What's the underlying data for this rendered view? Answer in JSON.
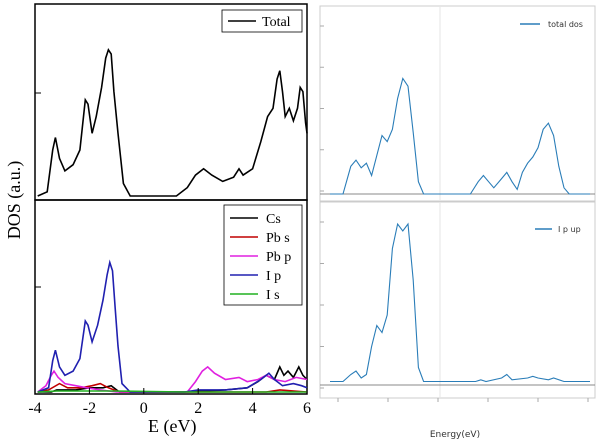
{
  "chart_data": [
    {
      "id": "left-top",
      "type": "line",
      "series": [
        {
          "name": "Total",
          "color": "#000000",
          "points": [
            [
              -3.9,
              0
            ],
            [
              -3.55,
              0.02
            ],
            [
              -3.35,
              0.22
            ],
            [
              -3.25,
              0.28
            ],
            [
              -3.1,
              0.18
            ],
            [
              -2.9,
              0.12
            ],
            [
              -2.6,
              0.15
            ],
            [
              -2.35,
              0.22
            ],
            [
              -2.15,
              0.46
            ],
            [
              -2.05,
              0.44
            ],
            [
              -1.9,
              0.3
            ],
            [
              -1.75,
              0.38
            ],
            [
              -1.55,
              0.52
            ],
            [
              -1.4,
              0.66
            ],
            [
              -1.3,
              0.7
            ],
            [
              -1.2,
              0.68
            ],
            [
              -1.1,
              0.5
            ],
            [
              -0.95,
              0.3
            ],
            [
              -0.75,
              0.06
            ],
            [
              -0.5,
              0
            ],
            [
              1.2,
              0
            ],
            [
              1.6,
              0.04
            ],
            [
              1.9,
              0.1
            ],
            [
              2.2,
              0.13
            ],
            [
              2.5,
              0.1
            ],
            [
              2.9,
              0.07
            ],
            [
              3.3,
              0.09
            ],
            [
              3.5,
              0.13
            ],
            [
              3.65,
              0.1
            ],
            [
              4.0,
              0.13
            ],
            [
              4.3,
              0.26
            ],
            [
              4.55,
              0.38
            ],
            [
              4.75,
              0.42
            ],
            [
              4.9,
              0.56
            ],
            [
              5.0,
              0.6
            ],
            [
              5.1,
              0.5
            ],
            [
              5.2,
              0.38
            ],
            [
              5.35,
              0.42
            ],
            [
              5.5,
              0.36
            ],
            [
              5.65,
              0.42
            ],
            [
              5.75,
              0.52
            ],
            [
              5.85,
              0.5
            ],
            [
              5.95,
              0.35
            ],
            [
              6.0,
              0.3
            ]
          ]
        }
      ],
      "xlim": [
        -4,
        6
      ],
      "ylim": [
        0,
        0.9
      ]
    },
    {
      "id": "left-bottom",
      "type": "line",
      "xlim": [
        -4,
        6
      ],
      "ylim": [
        0,
        0.9
      ],
      "xticks": [
        "-4",
        "-2",
        "0",
        "2",
        "4",
        "6"
      ],
      "xlabel": "E (eV)",
      "ylabel": "DOS (a.u.)",
      "series": [
        {
          "name": "Cs",
          "color": "#000000",
          "points": [
            [
              -3.9,
              0
            ],
            [
              -3.4,
              0
            ],
            [
              -3.2,
              0.01
            ],
            [
              -2.5,
              0.01
            ],
            [
              -2.0,
              0.02
            ],
            [
              -1.5,
              0.02
            ],
            [
              -1.2,
              0.03
            ],
            [
              -0.9,
              0
            ],
            [
              1.5,
              0
            ],
            [
              3.0,
              0.01
            ],
            [
              3.8,
              0.02
            ],
            [
              4.2,
              0.05
            ],
            [
              4.5,
              0.08
            ],
            [
              4.8,
              0.06
            ],
            [
              5.0,
              0.12
            ],
            [
              5.15,
              0.08
            ],
            [
              5.3,
              0.1
            ],
            [
              5.5,
              0.07
            ],
            [
              5.7,
              0.12
            ],
            [
              5.85,
              0.08
            ],
            [
              6.0,
              0.06
            ]
          ]
        },
        {
          "name": "Pb s",
          "color": "#c00000",
          "points": [
            [
              -3.9,
              0
            ],
            [
              -3.5,
              0.01
            ],
            [
              -3.1,
              0.04
            ],
            [
              -2.8,
              0.02
            ],
            [
              -2.3,
              0.02
            ],
            [
              -1.9,
              0.03
            ],
            [
              -1.6,
              0.04
            ],
            [
              -1.3,
              0.02
            ],
            [
              -0.9,
              0
            ],
            [
              1.5,
              0
            ],
            [
              4.5,
              0
            ],
            [
              5.0,
              0.01
            ],
            [
              6.0,
              0
            ]
          ]
        },
        {
          "name": "Pb p",
          "color": "#e020e0",
          "points": [
            [
              -3.9,
              0
            ],
            [
              -3.6,
              0.03
            ],
            [
              -3.4,
              0.08
            ],
            [
              -3.3,
              0.1
            ],
            [
              -3.15,
              0.07
            ],
            [
              -2.9,
              0.04
            ],
            [
              -2.5,
              0.03
            ],
            [
              -2.1,
              0.02
            ],
            [
              -1.6,
              0.01
            ],
            [
              -1.0,
              0
            ],
            [
              1.6,
              0
            ],
            [
              1.9,
              0.05
            ],
            [
              2.15,
              0.1
            ],
            [
              2.35,
              0.12
            ],
            [
              2.6,
              0.09
            ],
            [
              3.0,
              0.06
            ],
            [
              3.5,
              0.07
            ],
            [
              3.8,
              0.05
            ],
            [
              4.2,
              0.06
            ],
            [
              4.5,
              0.08
            ],
            [
              4.8,
              0.06
            ],
            [
              5.2,
              0.05
            ],
            [
              5.6,
              0.07
            ],
            [
              6.0,
              0.06
            ]
          ]
        },
        {
          "name": "I p",
          "color": "#2020b0",
          "points": [
            [
              -3.9,
              0
            ],
            [
              -3.5,
              0.02
            ],
            [
              -3.35,
              0.15
            ],
            [
              -3.25,
              0.2
            ],
            [
              -3.1,
              0.12
            ],
            [
              -2.9,
              0.08
            ],
            [
              -2.6,
              0.1
            ],
            [
              -2.35,
              0.16
            ],
            [
              -2.15,
              0.34
            ],
            [
              -2.05,
              0.32
            ],
            [
              -1.9,
              0.24
            ],
            [
              -1.7,
              0.32
            ],
            [
              -1.5,
              0.44
            ],
            [
              -1.35,
              0.56
            ],
            [
              -1.25,
              0.62
            ],
            [
              -1.15,
              0.58
            ],
            [
              -1.05,
              0.4
            ],
            [
              -0.95,
              0.22
            ],
            [
              -0.8,
              0.04
            ],
            [
              -0.5,
              0
            ],
            [
              1.5,
              0
            ],
            [
              2.0,
              0.01
            ],
            [
              3.0,
              0.01
            ],
            [
              3.8,
              0.02
            ],
            [
              4.3,
              0.06
            ],
            [
              4.6,
              0.09
            ],
            [
              4.8,
              0.06
            ],
            [
              5.1,
              0.03
            ],
            [
              5.5,
              0.04
            ],
            [
              5.8,
              0.03
            ],
            [
              6.0,
              0.02
            ]
          ]
        },
        {
          "name": "I s",
          "color": "#20b020",
          "points": [
            [
              -3.9,
              0
            ],
            [
              -3.2,
              0.005
            ],
            [
              -1.2,
              0.005
            ],
            [
              1.5,
              0
            ],
            [
              6.0,
              0
            ]
          ]
        }
      ]
    },
    {
      "id": "right-top",
      "type": "line",
      "xlabel": "",
      "series": [
        {
          "name": "total dos",
          "color": "#2a7db8",
          "points": [
            [
              0,
              0
            ],
            [
              0.05,
              0
            ],
            [
              0.08,
              0.18
            ],
            [
              0.1,
              0.22
            ],
            [
              0.12,
              0.17
            ],
            [
              0.14,
              0.2
            ],
            [
              0.16,
              0.12
            ],
            [
              0.18,
              0.25
            ],
            [
              0.2,
              0.38
            ],
            [
              0.22,
              0.34
            ],
            [
              0.24,
              0.42
            ],
            [
              0.26,
              0.62
            ],
            [
              0.28,
              0.75
            ],
            [
              0.3,
              0.7
            ],
            [
              0.32,
              0.4
            ],
            [
              0.34,
              0.08
            ],
            [
              0.36,
              0
            ],
            [
              0.54,
              0
            ],
            [
              0.57,
              0.08
            ],
            [
              0.59,
              0.12
            ],
            [
              0.61,
              0.08
            ],
            [
              0.63,
              0.04
            ],
            [
              0.66,
              0.1
            ],
            [
              0.68,
              0.14
            ],
            [
              0.7,
              0.08
            ],
            [
              0.72,
              0.03
            ],
            [
              0.74,
              0.14
            ],
            [
              0.76,
              0.2
            ],
            [
              0.78,
              0.24
            ],
            [
              0.8,
              0.3
            ],
            [
              0.82,
              0.42
            ],
            [
              0.84,
              0.46
            ],
            [
              0.86,
              0.38
            ],
            [
              0.88,
              0.18
            ],
            [
              0.9,
              0.04
            ],
            [
              0.92,
              0
            ],
            [
              1.0,
              0
            ]
          ]
        }
      ],
      "ylim": [
        0,
        1
      ]
    },
    {
      "id": "right-bottom",
      "type": "line",
      "xlabel": "Energy(eV)",
      "series": [
        {
          "name": "I p up",
          "color": "#2a7db8",
          "points": [
            [
              0,
              0.02
            ],
            [
              0.05,
              0.02
            ],
            [
              0.08,
              0.06
            ],
            [
              0.1,
              0.08
            ],
            [
              0.12,
              0.04
            ],
            [
              0.14,
              0.06
            ],
            [
              0.16,
              0.22
            ],
            [
              0.18,
              0.34
            ],
            [
              0.2,
              0.3
            ],
            [
              0.22,
              0.4
            ],
            [
              0.24,
              0.78
            ],
            [
              0.26,
              0.92
            ],
            [
              0.28,
              0.88
            ],
            [
              0.3,
              0.92
            ],
            [
              0.32,
              0.6
            ],
            [
              0.34,
              0.1
            ],
            [
              0.36,
              0.02
            ],
            [
              0.56,
              0.02
            ],
            [
              0.58,
              0.03
            ],
            [
              0.6,
              0.02
            ],
            [
              0.66,
              0.04
            ],
            [
              0.68,
              0.06
            ],
            [
              0.7,
              0.03
            ],
            [
              0.76,
              0.04
            ],
            [
              0.78,
              0.05
            ],
            [
              0.8,
              0.04
            ],
            [
              0.84,
              0.03
            ],
            [
              0.86,
              0.04
            ],
            [
              0.9,
              0.02
            ],
            [
              1.0,
              0.02
            ]
          ]
        }
      ],
      "ylim": [
        0,
        1
      ]
    }
  ]
}
